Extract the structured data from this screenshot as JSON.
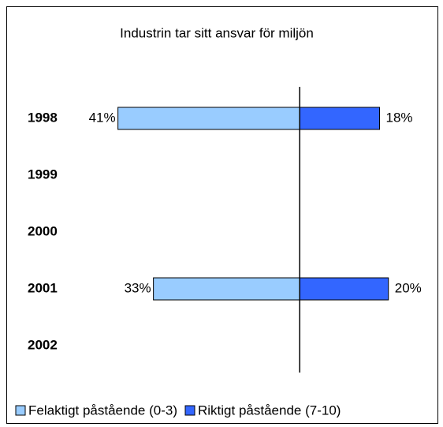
{
  "chart_data": {
    "type": "diverging_bar",
    "title": "Industrin tar sitt ansvar för miljön",
    "categories": [
      "1998",
      "1999",
      "2000",
      "2001",
      "2002"
    ],
    "series": [
      {
        "name": "Felaktigt påstående (0-3)",
        "color": "#99ccff",
        "values": [
          41,
          null,
          null,
          33,
          null
        ],
        "value_labels": [
          "41%",
          null,
          null,
          "33%",
          null
        ]
      },
      {
        "name": "Riktigt påstående (7-10)",
        "color": "#3366ff",
        "values": [
          18,
          null,
          null,
          20,
          null
        ],
        "value_labels": [
          "18%",
          null,
          null,
          "20%",
          null
        ]
      }
    ],
    "xlim": [
      -50,
      30
    ],
    "legend": "bottom"
  }
}
